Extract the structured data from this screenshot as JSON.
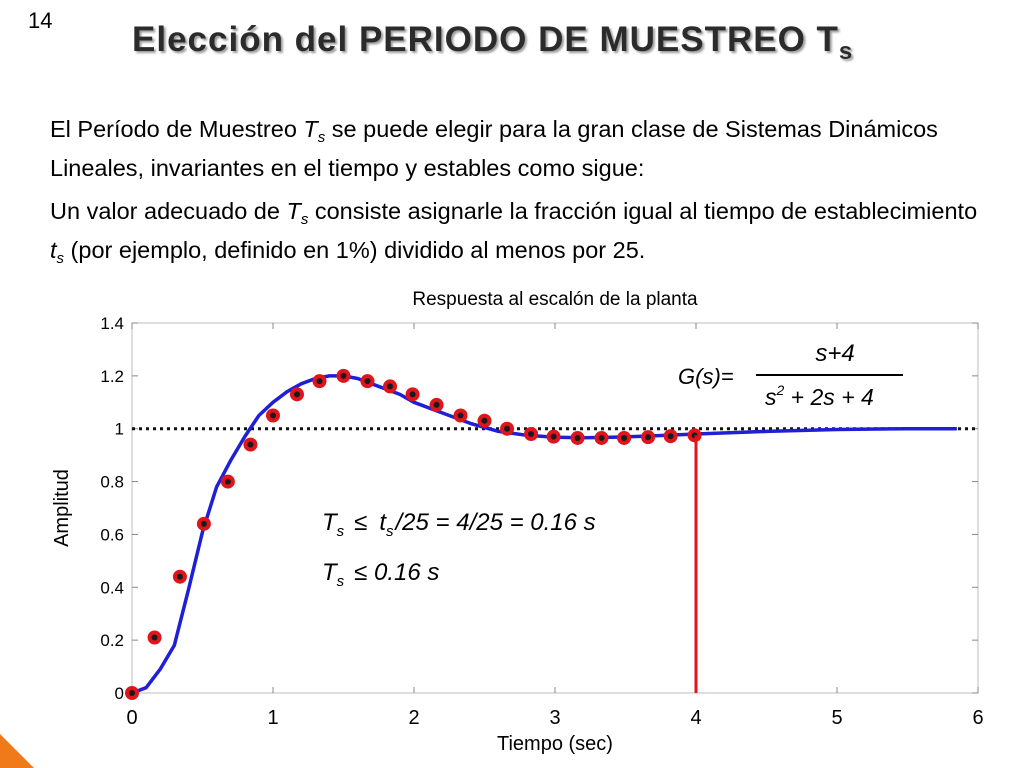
{
  "slide": {
    "number": "14",
    "title_main": "Elección del PERIODO DE MUESTREO T",
    "title_sub": "s",
    "para1": {
      "a": "El Período de Muestreo ",
      "ts": "T",
      "ts_sub": "s",
      "b": " se puede elegir para la gran clase de Sistemas Dinámicos Lineales, invariantes en el tiempo y estables como sigue:"
    },
    "para2": {
      "a": "Un valor adecuado de ",
      "ts": "T",
      "ts_sub": "s",
      "b": " consiste asignarle la fracción igual al tiempo de establecimiento ",
      "t": "t",
      "t_sub": "s",
      "c": " (por ejemplo, definido en 1%) dividido al menos por 25."
    }
  },
  "chart_data": {
    "type": "line",
    "title": "Respuesta al escalón de la planta",
    "xlabel": "Tiempo (sec)",
    "ylabel": "Amplitud",
    "xlim": [
      0,
      6
    ],
    "ylim": [
      0,
      1.4
    ],
    "xticks": [
      "0",
      "1",
      "2",
      "3",
      "4",
      "5",
      "6"
    ],
    "yticks": [
      "0",
      "0.2",
      "0.4",
      "0.6",
      "0.8",
      "1",
      "1.2",
      "1.4"
    ],
    "series": [
      {
        "kind": "continuous step response",
        "color": "#1f1fd6",
        "x": [
          0,
          0.1,
          0.2,
          0.3,
          0.4,
          0.5,
          0.6,
          0.7,
          0.8,
          0.9,
          1.0,
          1.1,
          1.2,
          1.3,
          1.4,
          1.5,
          1.6,
          1.7,
          1.8,
          1.9,
          2.0,
          2.2,
          2.4,
          2.6,
          2.8,
          3.0,
          3.2,
          3.4,
          3.6,
          3.8,
          4.0,
          4.5,
          5.0,
          5.5,
          5.85
        ],
        "y": [
          0,
          0.02,
          0.09,
          0.18,
          0.39,
          0.61,
          0.78,
          0.88,
          0.97,
          1.05,
          1.1,
          1.14,
          1.17,
          1.19,
          1.2,
          1.2,
          1.19,
          1.17,
          1.15,
          1.13,
          1.1,
          1.06,
          1.02,
          0.99,
          0.975,
          0.968,
          0.966,
          0.968,
          0.971,
          0.975,
          0.98,
          0.99,
          0.997,
          1.0,
          1.0
        ]
      },
      {
        "kind": "sampled values",
        "marker_fill": "#e0151b",
        "marker_dot": "#1a1a1a",
        "x": [
          0,
          0.16,
          0.34,
          0.51,
          0.68,
          0.84,
          1.0,
          1.17,
          1.33,
          1.5,
          1.67,
          1.83,
          1.99,
          2.16,
          2.33,
          2.5,
          2.66,
          2.83,
          2.99,
          3.16,
          3.33,
          3.49,
          3.66,
          3.82,
          3.99
        ],
        "y": [
          0,
          0.21,
          0.44,
          0.64,
          0.8,
          0.94,
          1.05,
          1.13,
          1.18,
          1.2,
          1.18,
          1.16,
          1.13,
          1.09,
          1.05,
          1.03,
          1.0,
          0.98,
          0.97,
          0.965,
          0.965,
          0.965,
          0.968,
          0.972,
          0.975
        ]
      }
    ],
    "reference_line": {
      "y": 1,
      "style": "dotted",
      "color": "#111111"
    },
    "marker_line": {
      "x": 4,
      "color": "#e0151b"
    },
    "annotations": {
      "transfer_function": {
        "lhs": "G(s)=",
        "numerator": "s+4",
        "den_a": "s",
        "den_exp": "2",
        "den_b": " + 2s + 4"
      },
      "line1": {
        "ts": "T",
        "ts_sub": "s",
        "le": "≤",
        "t": "t",
        "t_sub": "s",
        "rest": "/25 = 4/25 = 0.16 s"
      },
      "line2": {
        "ts": "T",
        "ts_sub": "s",
        "rest": "≤ 0.16 s"
      }
    }
  }
}
